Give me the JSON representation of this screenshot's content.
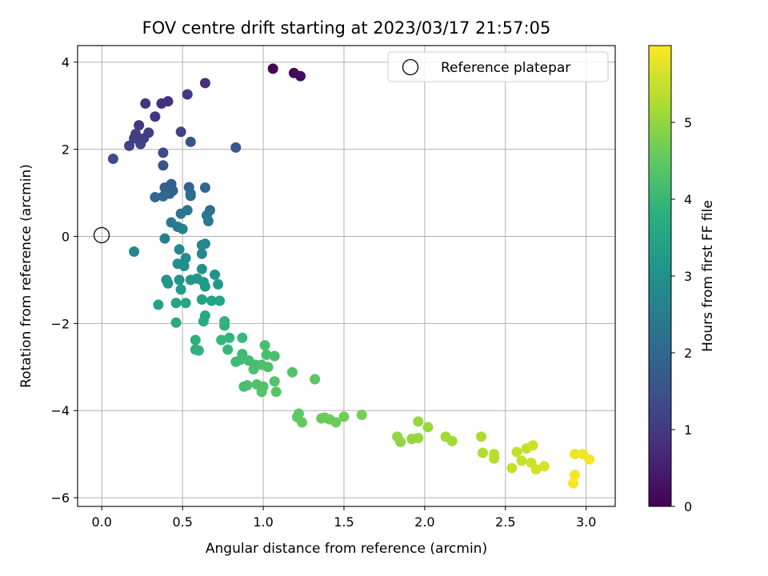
{
  "chart_data": {
    "type": "scatter",
    "title": "FOV centre drift starting at 2023/03/17 21:57:05",
    "xlabel": "Angular distance from reference (arcmin)",
    "ylabel": "Rotation from reference (arcmin)",
    "xlim": [
      -0.15,
      3.18
    ],
    "ylim": [
      -6.2,
      4.38
    ],
    "xticks": [
      0.0,
      0.5,
      1.0,
      1.5,
      2.0,
      2.5,
      3.0
    ],
    "xtick_labels": [
      "0.0",
      "0.5",
      "1.0",
      "1.5",
      "2.0",
      "2.5",
      "3.0"
    ],
    "yticks": [
      -6,
      -4,
      -2,
      0,
      2,
      4
    ],
    "ytick_labels": [
      "−6",
      "−4",
      "−2",
      "0",
      "2",
      "4"
    ],
    "grid": true,
    "colorbar": {
      "label": "Hours from first FF file",
      "colormap": "viridis",
      "range": [
        0,
        6.0
      ],
      "ticks": [
        0,
        1,
        2,
        3,
        4,
        5
      ],
      "tick_labels": [
        "0",
        "1",
        "2",
        "3",
        "4",
        "5"
      ]
    },
    "legend": {
      "placement": "top-right",
      "entries": [
        "Reference platepar"
      ]
    },
    "reference_point": {
      "label": "Reference platepar",
      "x": 0.0,
      "y": 0.0
    },
    "series": [
      {
        "points": [
          {
            "x": 1.06,
            "y": 3.85,
            "c": 0.05
          },
          {
            "x": 1.19,
            "y": 3.75,
            "c": 0.1
          },
          {
            "x": 1.23,
            "y": 3.68,
            "c": 0.15
          },
          {
            "x": 0.64,
            "y": 3.52,
            "c": 0.8
          },
          {
            "x": 0.53,
            "y": 3.26,
            "c": 1.0
          },
          {
            "x": 0.27,
            "y": 3.05,
            "c": 0.9
          },
          {
            "x": 0.37,
            "y": 3.05,
            "c": 0.85
          },
          {
            "x": 0.41,
            "y": 3.1,
            "c": 0.85
          },
          {
            "x": 0.33,
            "y": 2.75,
            "c": 0.9
          },
          {
            "x": 0.23,
            "y": 2.55,
            "c": 1.0
          },
          {
            "x": 0.29,
            "y": 2.38,
            "c": 1.05
          },
          {
            "x": 0.49,
            "y": 2.4,
            "c": 1.2
          },
          {
            "x": 0.21,
            "y": 2.35,
            "c": 1.05
          },
          {
            "x": 0.2,
            "y": 2.25,
            "c": 1.1
          },
          {
            "x": 0.26,
            "y": 2.25,
            "c": 1.1
          },
          {
            "x": 0.24,
            "y": 2.12,
            "c": 1.2
          },
          {
            "x": 0.17,
            "y": 2.08,
            "c": 1.2
          },
          {
            "x": 0.55,
            "y": 2.17,
            "c": 1.6
          },
          {
            "x": 0.83,
            "y": 2.04,
            "c": 1.65
          },
          {
            "x": 0.38,
            "y": 1.92,
            "c": 1.4
          },
          {
            "x": 0.07,
            "y": 1.78,
            "c": 1.35
          },
          {
            "x": 0.38,
            "y": 1.63,
            "c": 1.5
          },
          {
            "x": 0.43,
            "y": 1.2,
            "c": 1.8
          },
          {
            "x": 0.54,
            "y": 1.13,
            "c": 1.9
          },
          {
            "x": 0.64,
            "y": 1.12,
            "c": 1.95
          },
          {
            "x": 0.39,
            "y": 1.12,
            "c": 1.8
          },
          {
            "x": 0.44,
            "y": 1.05,
            "c": 1.85
          },
          {
            "x": 0.42,
            "y": 0.98,
            "c": 1.9
          },
          {
            "x": 0.33,
            "y": 0.9,
            "c": 2.0
          },
          {
            "x": 0.38,
            "y": 0.92,
            "c": 2.0
          },
          {
            "x": 0.55,
            "y": 0.98,
            "c": 2.05
          },
          {
            "x": 0.55,
            "y": 0.93,
            "c": 2.05
          },
          {
            "x": 0.67,
            "y": 0.6,
            "c": 2.2
          },
          {
            "x": 0.53,
            "y": 0.6,
            "c": 2.35
          },
          {
            "x": 0.49,
            "y": 0.52,
            "c": 2.4
          },
          {
            "x": 0.65,
            "y": 0.48,
            "c": 2.3
          },
          {
            "x": 0.66,
            "y": 0.35,
            "c": 2.4
          },
          {
            "x": 0.43,
            "y": 0.32,
            "c": 2.45
          },
          {
            "x": 0.47,
            "y": 0.22,
            "c": 2.5
          },
          {
            "x": 0.5,
            "y": 0.17,
            "c": 2.55
          },
          {
            "x": 0.39,
            "y": -0.05,
            "c": 2.65
          },
          {
            "x": 0.64,
            "y": -0.17,
            "c": 2.75
          },
          {
            "x": 0.62,
            "y": -0.2,
            "c": 2.75
          },
          {
            "x": 0.2,
            "y": -0.35,
            "c": 2.8
          },
          {
            "x": 0.48,
            "y": -0.3,
            "c": 2.75
          },
          {
            "x": 0.62,
            "y": -0.4,
            "c": 2.8
          },
          {
            "x": 0.52,
            "y": -0.5,
            "c": 2.9
          },
          {
            "x": 0.47,
            "y": -0.63,
            "c": 2.95
          },
          {
            "x": 0.51,
            "y": -0.68,
            "c": 2.95
          },
          {
            "x": 0.62,
            "y": -0.75,
            "c": 3.0
          },
          {
            "x": 0.7,
            "y": -0.88,
            "c": 3.05
          },
          {
            "x": 0.4,
            "y": -1.0,
            "c": 3.1
          },
          {
            "x": 0.48,
            "y": -1.0,
            "c": 3.1
          },
          {
            "x": 0.55,
            "y": -1.0,
            "c": 3.15
          },
          {
            "x": 0.59,
            "y": -0.97,
            "c": 3.15
          },
          {
            "x": 0.63,
            "y": -1.05,
            "c": 3.2
          },
          {
            "x": 0.41,
            "y": -1.08,
            "c": 3.15
          },
          {
            "x": 0.72,
            "y": -1.1,
            "c": 3.25
          },
          {
            "x": 0.49,
            "y": -1.22,
            "c": 3.3
          },
          {
            "x": 0.64,
            "y": -1.15,
            "c": 3.25
          },
          {
            "x": 0.62,
            "y": -1.45,
            "c": 3.4
          },
          {
            "x": 0.68,
            "y": -1.48,
            "c": 3.45
          },
          {
            "x": 0.73,
            "y": -1.48,
            "c": 3.5
          },
          {
            "x": 0.35,
            "y": -1.57,
            "c": 3.45
          },
          {
            "x": 0.46,
            "y": -1.53,
            "c": 3.5
          },
          {
            "x": 0.52,
            "y": -1.53,
            "c": 3.55
          },
          {
            "x": 0.64,
            "y": -1.82,
            "c": 3.6
          },
          {
            "x": 0.63,
            "y": -1.95,
            "c": 3.65
          },
          {
            "x": 0.46,
            "y": -1.98,
            "c": 3.6
          },
          {
            "x": 0.76,
            "y": -1.95,
            "c": 3.85
          },
          {
            "x": 0.76,
            "y": -2.05,
            "c": 3.9
          },
          {
            "x": 0.58,
            "y": -2.38,
            "c": 3.75
          },
          {
            "x": 0.74,
            "y": -2.38,
            "c": 3.95
          },
          {
            "x": 0.79,
            "y": -2.33,
            "c": 3.95
          },
          {
            "x": 0.87,
            "y": -2.33,
            "c": 4.05
          },
          {
            "x": 0.58,
            "y": -2.6,
            "c": 3.8
          },
          {
            "x": 0.6,
            "y": -2.62,
            "c": 3.85
          },
          {
            "x": 0.78,
            "y": -2.6,
            "c": 4.0
          },
          {
            "x": 1.01,
            "y": -2.5,
            "c": 4.2
          },
          {
            "x": 1.02,
            "y": -2.72,
            "c": 4.2
          },
          {
            "x": 0.87,
            "y": -2.7,
            "c": 4.1
          },
          {
            "x": 1.07,
            "y": -2.75,
            "c": 4.25
          },
          {
            "x": 0.83,
            "y": -2.88,
            "c": 4.1
          },
          {
            "x": 0.86,
            "y": -2.83,
            "c": 4.15
          },
          {
            "x": 0.91,
            "y": -2.85,
            "c": 4.15
          },
          {
            "x": 0.95,
            "y": -2.95,
            "c": 4.2
          },
          {
            "x": 0.99,
            "y": -2.95,
            "c": 4.25
          },
          {
            "x": 1.03,
            "y": -3.0,
            "c": 4.3
          },
          {
            "x": 0.94,
            "y": -3.05,
            "c": 4.25
          },
          {
            "x": 1.18,
            "y": -3.12,
            "c": 4.35
          },
          {
            "x": 1.0,
            "y": -3.45,
            "c": 4.3
          },
          {
            "x": 1.07,
            "y": -3.33,
            "c": 4.35
          },
          {
            "x": 1.32,
            "y": -3.28,
            "c": 4.45
          },
          {
            "x": 0.88,
            "y": -3.45,
            "c": 4.2
          },
          {
            "x": 0.9,
            "y": -3.42,
            "c": 4.25
          },
          {
            "x": 0.96,
            "y": -3.4,
            "c": 4.3
          },
          {
            "x": 0.99,
            "y": -3.57,
            "c": 4.35
          },
          {
            "x": 1.08,
            "y": -3.57,
            "c": 4.4
          },
          {
            "x": 1.22,
            "y": -4.07,
            "c": 4.5
          },
          {
            "x": 1.21,
            "y": -4.15,
            "c": 4.5
          },
          {
            "x": 1.24,
            "y": -4.27,
            "c": 4.55
          },
          {
            "x": 1.36,
            "y": -4.18,
            "c": 4.6
          },
          {
            "x": 1.38,
            "y": -4.16,
            "c": 4.6
          },
          {
            "x": 1.41,
            "y": -4.2,
            "c": 4.65
          },
          {
            "x": 1.45,
            "y": -4.27,
            "c": 4.65
          },
          {
            "x": 1.5,
            "y": -4.14,
            "c": 4.7
          },
          {
            "x": 1.61,
            "y": -4.1,
            "c": 4.75
          },
          {
            "x": 1.83,
            "y": -4.6,
            "c": 5.0
          },
          {
            "x": 1.85,
            "y": -4.72,
            "c": 5.0
          },
          {
            "x": 1.92,
            "y": -4.65,
            "c": 5.05
          },
          {
            "x": 1.96,
            "y": -4.63,
            "c": 5.05
          },
          {
            "x": 1.96,
            "y": -4.25,
            "c": 5.05
          },
          {
            "x": 2.02,
            "y": -4.38,
            "c": 5.1
          },
          {
            "x": 2.13,
            "y": -4.6,
            "c": 5.15
          },
          {
            "x": 2.17,
            "y": -4.7,
            "c": 5.15
          },
          {
            "x": 2.35,
            "y": -4.6,
            "c": 5.25
          },
          {
            "x": 2.36,
            "y": -4.97,
            "c": 5.3
          },
          {
            "x": 2.43,
            "y": -5.0,
            "c": 5.35
          },
          {
            "x": 2.43,
            "y": -5.1,
            "c": 5.35
          },
          {
            "x": 2.54,
            "y": -5.32,
            "c": 5.45
          },
          {
            "x": 2.57,
            "y": -4.95,
            "c": 5.45
          },
          {
            "x": 2.6,
            "y": -5.15,
            "c": 5.5
          },
          {
            "x": 2.63,
            "y": -4.87,
            "c": 5.5
          },
          {
            "x": 2.67,
            "y": -4.8,
            "c": 5.55
          },
          {
            "x": 2.66,
            "y": -5.2,
            "c": 5.55
          },
          {
            "x": 2.69,
            "y": -5.35,
            "c": 5.6
          },
          {
            "x": 2.74,
            "y": -5.28,
            "c": 5.65
          },
          {
            "x": 2.93,
            "y": -5.0,
            "c": 5.85
          },
          {
            "x": 2.98,
            "y": -5.0,
            "c": 5.9
          },
          {
            "x": 3.02,
            "y": -5.12,
            "c": 5.95
          },
          {
            "x": 2.93,
            "y": -5.48,
            "c": 5.9
          },
          {
            "x": 2.92,
            "y": -5.67,
            "c": 5.95
          }
        ]
      }
    ]
  }
}
